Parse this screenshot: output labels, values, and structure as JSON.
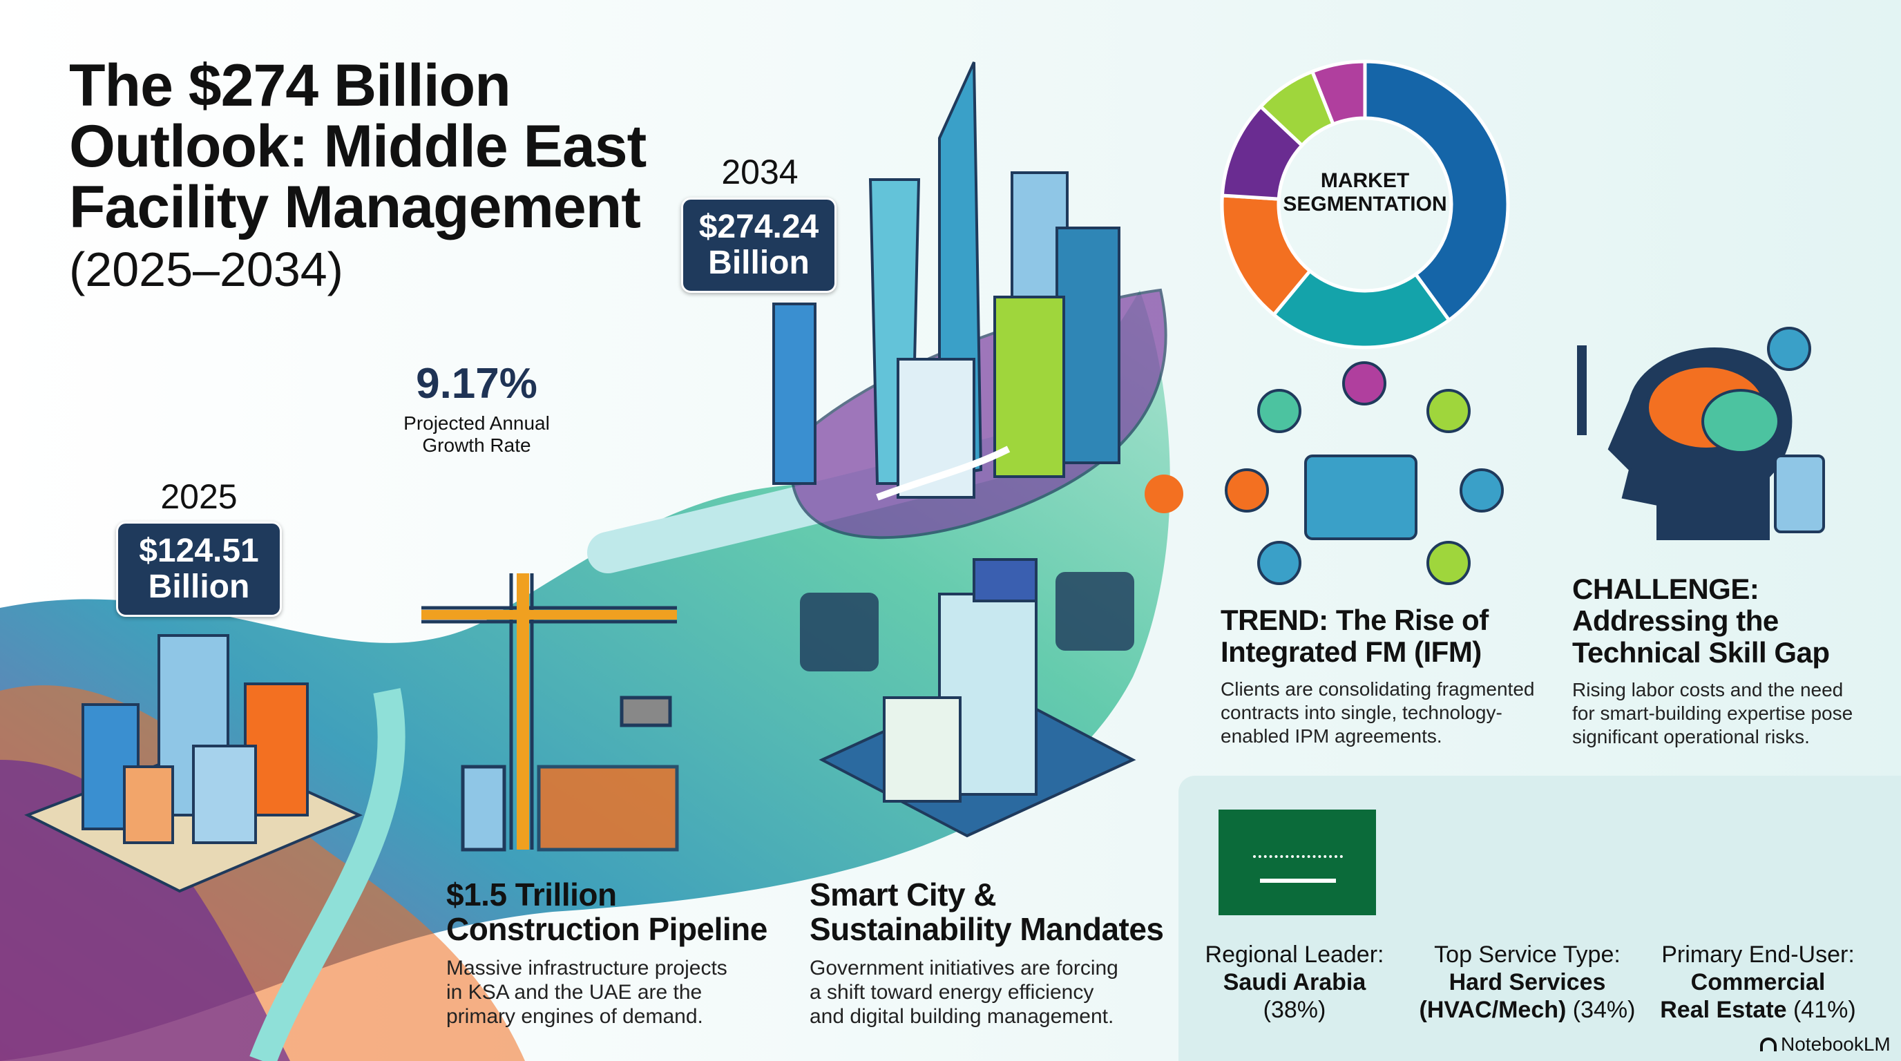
{
  "header": {
    "title": "The $274 Billion Outlook: Middle East Facility Management",
    "subtitle": "(2025–2034)"
  },
  "timeline": {
    "start": {
      "year": "2025",
      "value": "$124.51",
      "unit": "Billion"
    },
    "end": {
      "year": "2034",
      "value": "$274.24",
      "unit": "Billion"
    },
    "growth": {
      "value": "9.17%",
      "label_line1": "Projected Annual",
      "label_line2": "Growth Rate"
    }
  },
  "drivers": [
    {
      "title_line1": "$1.5 Trillion",
      "title_line2": "Construction Pipeline",
      "desc_line1": "Massive infrastructure projects",
      "desc_line2": "in KSA and the UAE are the",
      "desc_line3": "primary engines of demand.",
      "icon": "construction-crane-icon"
    },
    {
      "title_line1": "Smart City &",
      "title_line2": "Sustainability Mandates",
      "desc_line1": "Government initiatives are forcing",
      "desc_line2": "a shift toward energy efficiency",
      "desc_line3": "and digital building management.",
      "icon": "smart-building-icon"
    }
  ],
  "segmentation": {
    "label_line1": "MARKET",
    "label_line2": "SEGMENTATION",
    "chart_data": {
      "type": "pie",
      "values": [
        40,
        21,
        15,
        11,
        7,
        6
      ],
      "colors": [
        "#1565a8",
        "#14a3aa",
        "#f37021",
        "#6a2c91",
        "#9fd63c",
        "#b03f9e"
      ]
    }
  },
  "trend": {
    "title_line1": "TREND: The Rise of",
    "title_line2": "Integrated FM (IFM)",
    "desc_line1": "Clients are consolidating fragmented",
    "desc_line2": "contracts into single, technology-",
    "desc_line3": "enabled IPM agreements.",
    "icon": "integrated-network-icon"
  },
  "challenge": {
    "title_line1": "CHALLENGE:",
    "title_line2": "Addressing the",
    "title_line3": "Technical Skill Gap",
    "desc_line1": "Rising labor costs and the need",
    "desc_line2": "for smart-building expertise pose",
    "desc_line3": "significant operational risks.",
    "icon": "brain-tools-icon"
  },
  "stats": [
    {
      "label": "Regional Leader:",
      "bold1": "Saudi Arabia",
      "rest": "(38%)",
      "icon": "saudi-flag-icon"
    },
    {
      "label": "Top Service Type:",
      "bold1": "Hard Services",
      "bold2": "(HVAC/Mech)",
      "rest": "(34%)",
      "icon": "hvac-pipes-icon"
    },
    {
      "label": "Primary End-User:",
      "bold1": "Commercial",
      "bold2": "Real Estate",
      "rest": "(41%)",
      "icon": "commercial-buildings-icon"
    }
  ],
  "brand": {
    "name": "NotebookLM"
  },
  "colors": {
    "badge": "#1f3a5c",
    "accent_navy": "#1f3355",
    "panel": "#d9eeee"
  }
}
